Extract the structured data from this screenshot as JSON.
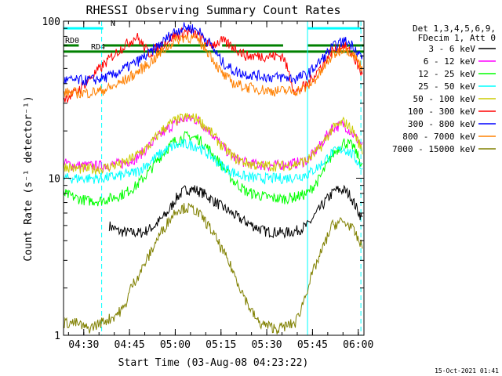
{
  "chart_data": {
    "type": "line",
    "title": "RHESSI Observing Summary Count Rates",
    "xlabel": "Start Time (03-Aug-08 04:23:22)",
    "ylabel": "Count Rate (s⁻¹ detector⁻¹)",
    "x_range_minutes": [
      0,
      98.5
    ],
    "ylim": [
      1,
      100
    ],
    "y_scale": "log",
    "grid": false,
    "x_ticks": [
      {
        "label": "04:30",
        "minutes": 6.63
      },
      {
        "label": "04:45",
        "minutes": 21.63
      },
      {
        "label": "05:00",
        "minutes": 36.63
      },
      {
        "label": "05:15",
        "minutes": 51.63
      },
      {
        "label": "05:30",
        "minutes": 66.63
      },
      {
        "label": "05:45",
        "minutes": 81.63
      },
      {
        "label": "06:00",
        "minutes": 96.63
      }
    ],
    "y_ticks": [
      {
        "label": "1",
        "value": 1
      },
      {
        "label": "10",
        "value": 10
      },
      {
        "label": "100",
        "value": 100
      }
    ],
    "legend": {
      "placement": "top-right",
      "header": [
        "Det 1,3,4,5,6,9,",
        "FDecim 1, Att 0"
      ]
    },
    "series": [
      {
        "name": "3 - 6 keV",
        "color": "#000000",
        "x": [
          15,
          18,
          22,
          26,
          30,
          34,
          37,
          40,
          43,
          46,
          50,
          54,
          58,
          62,
          66,
          72,
          76,
          80,
          83,
          86,
          89,
          92,
          94,
          96,
          98
        ],
        "y": [
          5,
          4.6,
          4.5,
          4.5,
          5,
          6,
          7.5,
          8.5,
          8.5,
          8,
          7,
          6.2,
          5.5,
          5,
          4.6,
          4.5,
          4.6,
          5,
          6,
          7.2,
          8.4,
          8.4,
          7.8,
          6.5,
          5.5
        ]
      },
      {
        "name": "6 - 12 keV",
        "color": "#ff00ff",
        "x": [
          0,
          4,
          8,
          12,
          16,
          20,
          24,
          28,
          32,
          36,
          40,
          44,
          48,
          52,
          56,
          60,
          64,
          68,
          72,
          76,
          80,
          84,
          88,
          92,
          95,
          98
        ],
        "y": [
          12.5,
          12,
          12,
          12,
          12.2,
          12.5,
          13.5,
          16,
          19,
          22,
          24,
          23.5,
          20,
          16,
          13.5,
          12.5,
          12.2,
          12,
          12.2,
          12.5,
          13,
          16,
          21,
          22,
          19,
          16
        ]
      },
      {
        "name": "12 - 25 keV",
        "color": "#00ff00",
        "x": [
          0,
          4,
          8,
          12,
          16,
          20,
          24,
          28,
          32,
          36,
          40,
          44,
          48,
          52,
          56,
          60,
          64,
          68,
          72,
          76,
          80,
          84,
          88,
          92,
          95,
          98
        ],
        "y": [
          8,
          7.5,
          7.2,
          7.2,
          7.5,
          8,
          9,
          11,
          14,
          17,
          18.5,
          18,
          15,
          12,
          9.5,
          8.2,
          7.8,
          7.5,
          7.4,
          7.6,
          8,
          10,
          14,
          17,
          16,
          12
        ]
      },
      {
        "name": "25 - 50 keV",
        "color": "#00ffff",
        "x": [
          0,
          4,
          8,
          12,
          16,
          20,
          24,
          28,
          32,
          36,
          40,
          44,
          48,
          52,
          56,
          60,
          64,
          68,
          72,
          76,
          80,
          84,
          88,
          92,
          95,
          98
        ],
        "y": [
          10,
          10,
          10,
          10,
          10.2,
          10.5,
          11,
          12.5,
          14.5,
          16,
          16.5,
          16,
          14,
          12,
          10.8,
          10.2,
          10,
          10,
          10,
          10.2,
          10.6,
          12,
          14.5,
          15.5,
          14,
          11.5
        ]
      },
      {
        "name": "50 - 100 keV",
        "color": "#cccc00",
        "x": [
          0,
          4,
          8,
          12,
          16,
          20,
          24,
          28,
          32,
          36,
          40,
          44,
          48,
          52,
          56,
          60,
          64,
          68,
          72,
          76,
          80,
          84,
          88,
          92,
          95,
          98
        ],
        "y": [
          12,
          11.5,
          11.5,
          11.5,
          12,
          12.5,
          14,
          16,
          20,
          23,
          24.5,
          24,
          20,
          16,
          13.5,
          12.5,
          12,
          12,
          12,
          12.3,
          13,
          15.5,
          20.5,
          23,
          20,
          15
        ]
      },
      {
        "name": "100 - 300 keV",
        "color": "#ff0000",
        "x": [
          0,
          4,
          8,
          12,
          16,
          20,
          24,
          28,
          32,
          36,
          40,
          44,
          48,
          52,
          56,
          60,
          64,
          68,
          72,
          76,
          80,
          84,
          88,
          92,
          95,
          98
        ],
        "y": [
          32,
          35,
          42,
          50,
          60,
          70,
          80,
          62,
          70,
          80,
          86,
          82,
          70,
          75,
          68,
          60,
          60,
          60,
          60,
          35,
          40,
          50,
          65,
          70,
          60,
          45
        ]
      },
      {
        "name": "300 - 800 keV",
        "color": "#0000ff",
        "x": [
          0,
          4,
          8,
          12,
          16,
          20,
          24,
          28,
          32,
          36,
          40,
          44,
          48,
          52,
          56,
          60,
          64,
          68,
          72,
          76,
          80,
          84,
          88,
          92,
          95,
          98
        ],
        "y": [
          42,
          42,
          42,
          43,
          45,
          50,
          55,
          62,
          72,
          85,
          92,
          88,
          72,
          55,
          48,
          46,
          45,
          44,
          44,
          43,
          46,
          55,
          68,
          75,
          70,
          58
        ]
      },
      {
        "name": "800 - 7000 keV",
        "color": "#ff8000",
        "x": [
          0,
          4,
          8,
          12,
          16,
          20,
          24,
          28,
          32,
          36,
          40,
          44,
          48,
          52,
          56,
          60,
          64,
          68,
          72,
          76,
          80,
          84,
          88,
          92,
          95,
          98
        ],
        "y": [
          35,
          35,
          35,
          36,
          38,
          42,
          47,
          54,
          63,
          74,
          80,
          76,
          62,
          46,
          40,
          38,
          37,
          36,
          36,
          36,
          38,
          46,
          60,
          68,
          62,
          50
        ]
      },
      {
        "name": "7000 - 15000 keV",
        "color": "#808000",
        "x": [
          0,
          4,
          8,
          12,
          16,
          20,
          22,
          25,
          28,
          31,
          34,
          37,
          40,
          43,
          46,
          49,
          52,
          55,
          58,
          61,
          64,
          70,
          76,
          78,
          80,
          82,
          84,
          86,
          88,
          91,
          94,
          96,
          98
        ],
        "y": [
          1.2,
          1.2,
          1.1,
          1.2,
          1.3,
          1.5,
          2.0,
          2.5,
          3.2,
          4.2,
          5.2,
          6.3,
          6.5,
          6.3,
          5.5,
          4.5,
          3.5,
          2.7,
          2.0,
          1.5,
          1.2,
          1.1,
          1.2,
          1.5,
          2.0,
          2.6,
          3.2,
          4.0,
          5.0,
          5.3,
          5.0,
          4.3,
          3.6
        ]
      }
    ],
    "annotations": {
      "flags": [
        {
          "label": "RD0",
          "color": "#008000",
          "x_start": 0,
          "x_end": 98.5,
          "y_value": 70,
          "gaps": [
            [
              5,
              13
            ],
            [
              47,
              52
            ],
            [
              72,
              80
            ]
          ]
        },
        {
          "label": "RD4",
          "color": "#008000",
          "x_start": 0,
          "x_end": 98.5,
          "y_value": 64
        },
        {
          "label": "N",
          "color": "#00ffff",
          "x_start": 0,
          "x_end": 13,
          "y_value": 90
        },
        {
          "label": "",
          "color": "#00ffff",
          "x_start": 80,
          "x_end": 97.5,
          "y_value": 90
        }
      ],
      "vertical_lines": [
        {
          "x": 0,
          "color": "#00ffff",
          "style": "solid"
        },
        {
          "x": 12.5,
          "color": "#00ffff",
          "style": "dashed"
        },
        {
          "x": 80,
          "color": "#00ffff",
          "style": "solid"
        },
        {
          "x": 97.5,
          "color": "#00ffff",
          "style": "dashed"
        }
      ]
    }
  },
  "footer_date": "15-Oct-2021 01:41"
}
